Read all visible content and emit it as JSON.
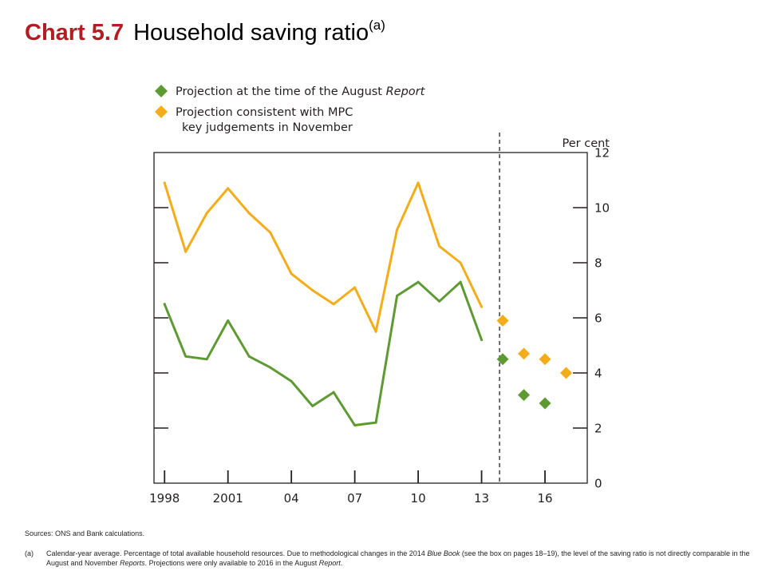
{
  "header": {
    "chart_number": "Chart 5.7",
    "title": "Household saving ratio",
    "title_note": "(a)"
  },
  "colors": {
    "august": "#5e9a32",
    "november": "#f4ad1a",
    "axis": "#231f20",
    "title_red": "#b01e23"
  },
  "chart_data": {
    "type": "line",
    "unit_label": "Per cent",
    "x_tick_labels": [
      {
        "x": 1998,
        "label": "1998"
      },
      {
        "x": 2001,
        "label": "2001"
      },
      {
        "x": 2004,
        "label": "04"
      },
      {
        "x": 2007,
        "label": "07"
      },
      {
        "x": 2010,
        "label": "10"
      },
      {
        "x": 2013,
        "label": "13"
      },
      {
        "x": 2016,
        "label": "16"
      }
    ],
    "y_ticks": [
      0,
      2,
      4,
      6,
      8,
      10,
      12
    ],
    "ylim": [
      0,
      12
    ],
    "xlim": [
      1997.5,
      2018
    ],
    "y_axis_side": "right",
    "projection_divider": 2013.85,
    "legend_placement": "top-left",
    "legend": [
      {
        "name_parts": [
          "Projection at the time of the August ",
          "Report"
        ],
        "series": "august"
      },
      {
        "name_lines": [
          "Projection consistent with MPC",
          "key judgements in November"
        ],
        "series": "november"
      }
    ],
    "series": [
      {
        "key": "november",
        "x": [
          1998,
          1999,
          2000,
          2001,
          2002,
          2003,
          2004,
          2005,
          2006,
          2007,
          2008,
          2009,
          2010,
          2011,
          2012,
          2013
        ],
        "values": [
          10.9,
          8.4,
          9.8,
          10.7,
          9.8,
          9.1,
          7.6,
          7.0,
          6.5,
          7.1,
          5.5,
          9.2,
          10.9,
          8.6,
          8.0,
          6.4
        ],
        "projection_x": [
          2014,
          2015,
          2016,
          2017
        ],
        "projection_values": [
          5.9,
          4.7,
          4.5,
          4.0
        ]
      },
      {
        "key": "august",
        "x": [
          1998,
          1999,
          2000,
          2001,
          2002,
          2003,
          2004,
          2005,
          2006,
          2007,
          2008,
          2009,
          2010,
          2011,
          2012,
          2013
        ],
        "values": [
          6.5,
          4.6,
          4.5,
          5.9,
          4.6,
          4.2,
          3.7,
          2.8,
          3.3,
          2.1,
          2.2,
          6.8,
          7.3,
          6.6,
          7.3,
          5.2
        ],
        "projection_x": [
          2014,
          2015,
          2016
        ],
        "projection_values": [
          4.5,
          3.2,
          2.9
        ]
      }
    ]
  },
  "sources": "Sources: ONS and Bank calculations.",
  "footnote": {
    "mark": "(a)",
    "parts": [
      {
        "text": "Calendar-year average.  Percentage of total available household resources.  Due to methodological changes in the 2014 ",
        "italic": false
      },
      {
        "text": "Blue Book",
        "italic": true
      },
      {
        "text": " (see the box on pages 18–19), the level of the saving ratio is not directly comparable in the August and November ",
        "italic": false
      },
      {
        "text": "Reports",
        "italic": true
      },
      {
        "text": ".  Projections were only available to 2016 in the August ",
        "italic": false
      },
      {
        "text": "Report",
        "italic": true
      },
      {
        "text": ".",
        "italic": false
      }
    ]
  }
}
